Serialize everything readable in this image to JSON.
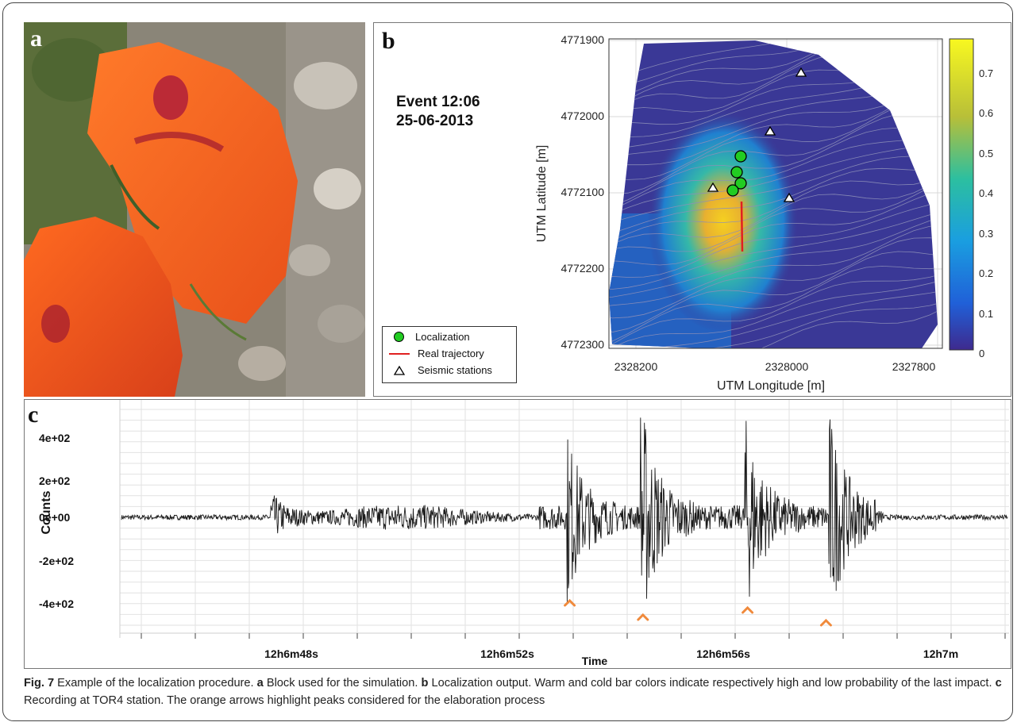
{
  "panels": {
    "a": {
      "letter": "a"
    },
    "b": {
      "letter": "b",
      "event_line1": "Event 12:06",
      "event_line2": "25-06-2013",
      "ylabel": "UTM Latitude [m]",
      "xlabel": "UTM Longitude [m]",
      "yticks": [
        "4771900",
        "4772000",
        "4772100",
        "4772200",
        "4772300"
      ],
      "xticks": [
        "2328200",
        "2328000",
        "2327800"
      ],
      "colorbar_ticks": [
        "0.7",
        "0.6",
        "0.5",
        "0.4",
        "0.3",
        "0.2",
        "0.1",
        "0"
      ],
      "legend": {
        "localization": "Localization",
        "trajectory": "Real trajectory",
        "stations": "Seismic stations"
      },
      "colors": {
        "localization": "#22cc22",
        "trajectory": "#e02020",
        "background_map": "#3a3896",
        "hot": "#f5d020"
      }
    },
    "c": {
      "letter": "c",
      "ylabel": "Counts",
      "xlabel": "Time",
      "yticks": [
        "4e+02",
        "2e+02",
        "0e+00",
        "-2e+02",
        "-4e+02"
      ],
      "xticks": [
        "12h6m48s",
        "12h6m52s",
        "12h6m56s",
        "12h7m"
      ],
      "arrow_color": "#f08a3c"
    }
  },
  "caption": {
    "fig": "Fig. 7",
    "intro": " Example of the localization procedure. ",
    "a": "a",
    "a_text": " Block used for the simulation. ",
    "b": "b",
    "b_text": " Localization output. Warm and cold bar colors indicate respectively high and low probability of the last impact. ",
    "c": "c",
    "c_text": " Recording at TOR4 station. The orange arrows highlight peaks considered for the elaboration process"
  },
  "chart_data": [
    {
      "type": "heatmap",
      "title": "",
      "xlabel": "UTM Longitude [m]",
      "ylabel": "UTM Latitude [m]",
      "xlim": [
        2328250,
        2327770
      ],
      "ylim": [
        4772300,
        4771890
      ],
      "x_reversed": true,
      "y_reversed": true,
      "colorbar_range": [
        0,
        0.78
      ],
      "localization_points": [
        {
          "x": 2328085,
          "y": 4772055
        },
        {
          "x": 2328090,
          "y": 4772075
        },
        {
          "x": 2328085,
          "y": 4772090
        },
        {
          "x": 2328095,
          "y": 4772100
        }
      ],
      "real_trajectory": [
        {
          "x": 2328083,
          "y": 4772085
        },
        {
          "x": 2328082,
          "y": 4772150
        }
      ],
      "seismic_stations": [
        {
          "x": 2327975,
          "y": 4771945
        },
        {
          "x": 2328015,
          "y": 4772020
        },
        {
          "x": 2328120,
          "y": 4772095
        },
        {
          "x": 2327990,
          "y": 4772110
        }
      ],
      "legend": [
        "Localization",
        "Real trajectory",
        "Seismic stations"
      ],
      "legend_position": "bottom-left"
    },
    {
      "type": "line",
      "title": "",
      "xlabel": "Time",
      "ylabel": "Counts",
      "xlim": [
        "12h6m44s",
        "12h7m1s"
      ],
      "ylim": [
        -550,
        600
      ],
      "major_peaks": [
        {
          "time": "12h6m46.9s",
          "min": -80,
          "max": 130
        },
        {
          "time": "12h6m52.6s",
          "min": -330,
          "max": 300
        },
        {
          "time": "12h6m54.0s",
          "min": -420,
          "max": 500
        },
        {
          "time": "12h6m56.0s",
          "min": -380,
          "max": 380
        },
        {
          "time": "12h6m57.6s",
          "min": -440,
          "max": 380
        }
      ],
      "arrow_times": [
        "12h6m52.6s",
        "12h6m54.0s",
        "12h6m56.0s",
        "12h6m57.5s"
      ]
    }
  ]
}
